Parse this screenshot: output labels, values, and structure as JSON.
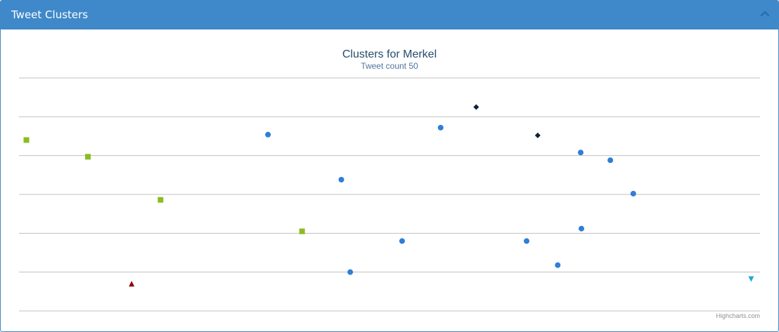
{
  "panel": {
    "title": "Tweet Clusters",
    "collapse_icon": "chevron-up-icon"
  },
  "chart_data": {
    "type": "scatter",
    "title": "Clusters for Merkel",
    "subtitle": "Tweet count 50",
    "credits": "Highcharts.com",
    "xlim": [
      0,
      100
    ],
    "ylim": [
      0,
      6
    ],
    "grid": true,
    "legend": "none",
    "series": [
      {
        "marker": "square",
        "color": "#8bbc21",
        "points": [
          [
            1,
            4.4
          ],
          [
            9.3,
            3.97
          ],
          [
            19.1,
            2.86
          ],
          [
            38.2,
            2.05
          ]
        ]
      },
      {
        "marker": "circle",
        "color": "#2f7ed8",
        "points": [
          [
            33.6,
            4.54
          ],
          [
            43.5,
            3.38
          ],
          [
            44.7,
            1.0
          ],
          [
            51.7,
            1.8
          ],
          [
            56.9,
            4.72
          ],
          [
            68.5,
            1.8
          ],
          [
            72.7,
            1.18
          ],
          [
            75.8,
            4.08
          ],
          [
            75.9,
            2.12
          ],
          [
            79.8,
            3.88
          ],
          [
            82.9,
            3.02
          ]
        ]
      },
      {
        "marker": "diamond",
        "color": "#0d233a",
        "points": [
          [
            61.7,
            5.25
          ],
          [
            70.0,
            4.52
          ]
        ]
      },
      {
        "marker": "triangle",
        "color": "#910000",
        "points": [
          [
            15.2,
            0.7
          ]
        ]
      },
      {
        "marker": "triangle-down",
        "color": "#1aadce",
        "points": [
          [
            98.8,
            0.82
          ]
        ]
      }
    ]
  }
}
